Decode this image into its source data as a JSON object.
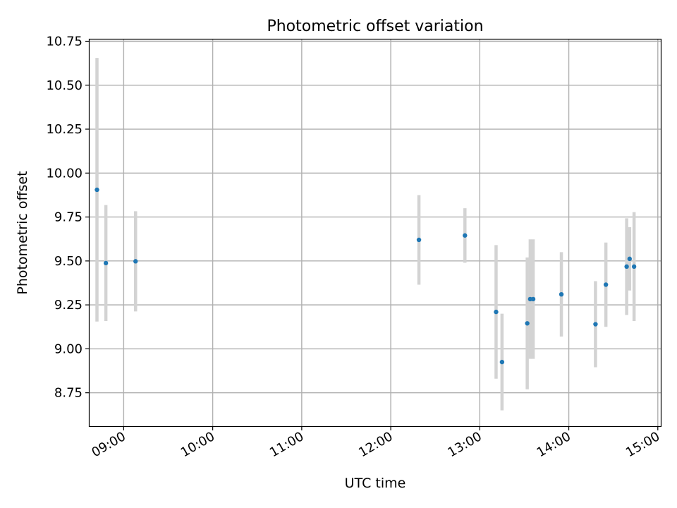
{
  "chart_data": {
    "type": "scatter",
    "title": "Photometric offset variation",
    "xlabel": "UTC time",
    "ylabel": "Photometric offset",
    "x_tick_labels": [
      "09:00",
      "10:00",
      "11:00",
      "12:00",
      "13:00",
      "14:00",
      "15:00"
    ],
    "y_tick_labels": [
      "8.75",
      "9.00",
      "9.25",
      "9.50",
      "9.75",
      "10.00",
      "10.25",
      "10.50",
      "10.75"
    ],
    "xlim": [
      "08:37",
      "15:02"
    ],
    "ylim": [
      8.56,
      10.76
    ],
    "grid": true,
    "series": [
      {
        "marker": "point",
        "color": "#1f77b4",
        "errorbar_color": "#d3d3d3",
        "points": [
          {
            "x": "08:42",
            "y": 9.905,
            "yerr": 0.75
          },
          {
            "x": "08:48",
            "y": 9.488,
            "yerr": 0.33
          },
          {
            "x": "09:08",
            "y": 9.498,
            "yerr": 0.285
          },
          {
            "x": "12:19",
            "y": 9.62,
            "yerr": 0.255
          },
          {
            "x": "12:50",
            "y": 9.645,
            "yerr": 0.155
          },
          {
            "x": "13:11",
            "y": 9.21,
            "yerr": 0.38
          },
          {
            "x": "13:15",
            "y": 8.925,
            "yerr": 0.275
          },
          {
            "x": "13:32",
            "y": 9.145,
            "yerr": 0.375
          },
          {
            "x": "13:34",
            "y": 9.283,
            "yerr": 0.34
          },
          {
            "x": "13:36",
            "y": 9.283,
            "yerr": 0.34
          },
          {
            "x": "13:55",
            "y": 9.31,
            "yerr": 0.24
          },
          {
            "x": "14:18",
            "y": 9.14,
            "yerr": 0.245
          },
          {
            "x": "14:25",
            "y": 9.365,
            "yerr": 0.24
          },
          {
            "x": "14:39",
            "y": 9.468,
            "yerr": 0.275
          },
          {
            "x": "14:41",
            "y": 9.512,
            "yerr": 0.18
          },
          {
            "x": "14:44",
            "y": 9.468,
            "yerr": 0.31
          }
        ]
      }
    ]
  }
}
